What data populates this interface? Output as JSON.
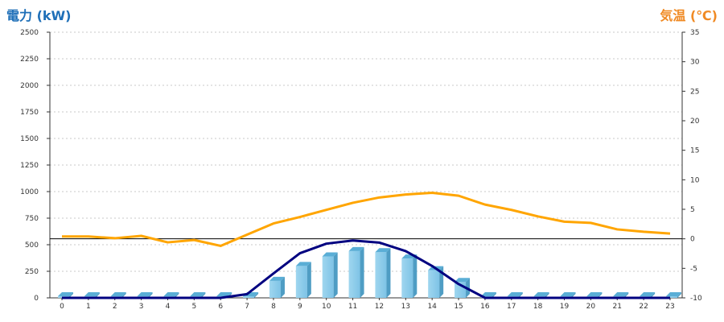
{
  "chart_data": {
    "type": "bar+line",
    "left_axis_title": "電力 (kW)",
    "right_axis_title": "気温 (℃)",
    "categories": [
      "0",
      "1",
      "2",
      "3",
      "4",
      "5",
      "6",
      "7",
      "8",
      "9",
      "10",
      "11",
      "12",
      "13",
      "14",
      "15",
      "16",
      "17",
      "18",
      "19",
      "20",
      "21",
      "22",
      "23"
    ],
    "left_ylim": [
      0,
      2500
    ],
    "left_ticks": [
      0,
      250,
      500,
      750,
      1000,
      1250,
      1500,
      1750,
      2000,
      2250,
      2500
    ],
    "right_ylim": [
      -10,
      35
    ],
    "right_ticks": [
      -10,
      -5,
      0,
      5,
      10,
      15,
      20,
      25,
      30,
      35
    ],
    "grid": true,
    "series": [
      {
        "kind": "bar",
        "axis": "left",
        "color": "#87ceeb",
        "values": [
          0,
          0,
          0,
          0,
          0,
          0,
          0,
          10,
          160,
          300,
          390,
          440,
          430,
          370,
          260,
          150,
          0,
          0,
          0,
          0,
          0,
          0,
          0,
          0
        ]
      },
      {
        "kind": "line",
        "axis": "left",
        "color": "#000080",
        "values": [
          0,
          0,
          0,
          0,
          0,
          0,
          0,
          35,
          230,
          420,
          510,
          540,
          520,
          440,
          300,
          130,
          0,
          0,
          0,
          0,
          0,
          0,
          0,
          0
        ]
      },
      {
        "kind": "line",
        "axis": "right",
        "color": "#ffa500",
        "values": [
          0.4,
          0.4,
          0.1,
          0.5,
          -0.6,
          -0.2,
          -1.2,
          0.7,
          2.6,
          3.7,
          4.9,
          6.1,
          7.0,
          7.5,
          7.8,
          7.3,
          5.8,
          4.9,
          3.8,
          2.9,
          2.7,
          1.6,
          1.2,
          0.9
        ]
      }
    ],
    "zero_line": {
      "axis": "right",
      "value": 0
    }
  }
}
